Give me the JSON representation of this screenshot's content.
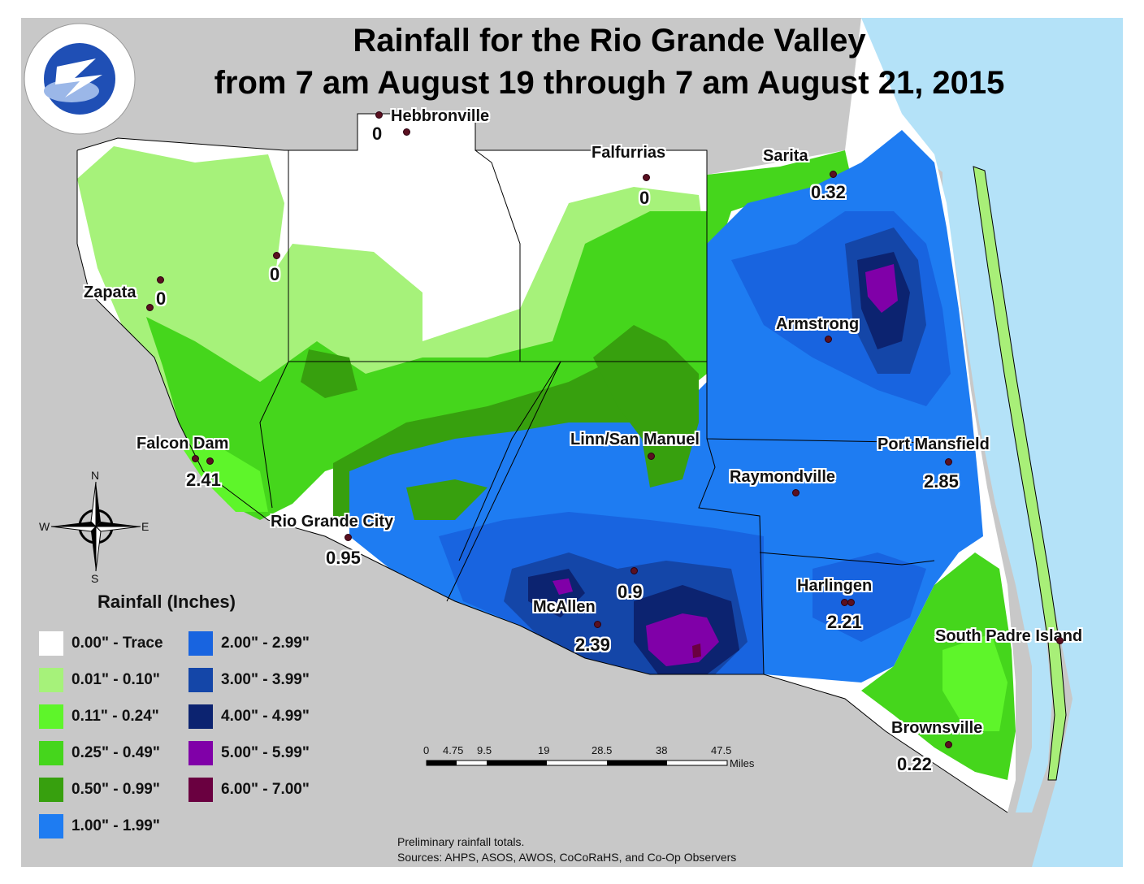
{
  "title": {
    "line1": "Rainfall for the Rio Grande Valley",
    "line2": "from 7 am August 19 through 7 am August 21, 2015"
  },
  "logo": {
    "text": "NATIONAL WEATHER SERVICE",
    "colors": {
      "ring": "#ffffff",
      "text": "#c8102e",
      "center": "#1f4fb5",
      "bolt": "#ffffff"
    }
  },
  "places": [
    {
      "name": "Hebbronville",
      "value": "0"
    },
    {
      "name": "Falfurrias",
      "value": "0"
    },
    {
      "name": "Sarita",
      "value": "0.32"
    },
    {
      "name": "Zapata",
      "value": "0"
    },
    {
      "name": "",
      "value": "0"
    },
    {
      "name": "Armstrong",
      "value": ""
    },
    {
      "name": "Falcon Dam",
      "value": "2.41"
    },
    {
      "name": "Linn/San Manuel",
      "value": ""
    },
    {
      "name": "Port Mansfield",
      "value": "2.85"
    },
    {
      "name": "Raymondville",
      "value": ""
    },
    {
      "name": "Rio Grande City",
      "value": "0.95"
    },
    {
      "name": "",
      "value": "0.9"
    },
    {
      "name": "McAllen",
      "value": "2.39"
    },
    {
      "name": "Harlingen",
      "value": "2.21"
    },
    {
      "name": "South Padre Island",
      "value": ""
    },
    {
      "name": "Brownsville",
      "value": "0.22"
    }
  ],
  "compass": {
    "n": "N",
    "s": "S",
    "e": "E",
    "w": "W"
  },
  "legend": {
    "title": "Rainfall (Inches)",
    "items": [
      {
        "label": "0.00\" - Trace",
        "color": "#ffffff"
      },
      {
        "label": "0.01\" - 0.10\"",
        "color": "#a6f27a"
      },
      {
        "label": "0.11\" - 0.24\"",
        "color": "#5ef52a"
      },
      {
        "label": "0.25\" - 0.49\"",
        "color": "#45d61c"
      },
      {
        "label": "0.50\" - 0.99\"",
        "color": "#37a00e"
      },
      {
        "label": "1.00\" - 1.99\"",
        "color": "#1e7cf2"
      },
      {
        "label": "2.00\" - 2.99\"",
        "color": "#1864e0"
      },
      {
        "label": "3.00\" - 3.99\"",
        "color": "#1446a8"
      },
      {
        "label": "4.00\" - 4.99\"",
        "color": "#0c2370"
      },
      {
        "label": "5.00\" - 5.99\"",
        "color": "#8000a8"
      },
      {
        "label": "6.00\" - 7.00\"",
        "color": "#6a0040"
      }
    ]
  },
  "scale_bar": {
    "ticks": [
      "0",
      "4.75",
      "9.5",
      "19",
      "28.5",
      "38",
      "47.5"
    ],
    "unit": "Miles"
  },
  "footer": {
    "line1": "Preliminary rainfall totals.",
    "line2": "Sources: AHPS, ASOS, AWOS, CoCoRaHS, and Co-Op Observers"
  },
  "colors": {
    "land_outside": "#c8c8c8",
    "water": "#b4e2f8",
    "county_border": "#000000"
  }
}
